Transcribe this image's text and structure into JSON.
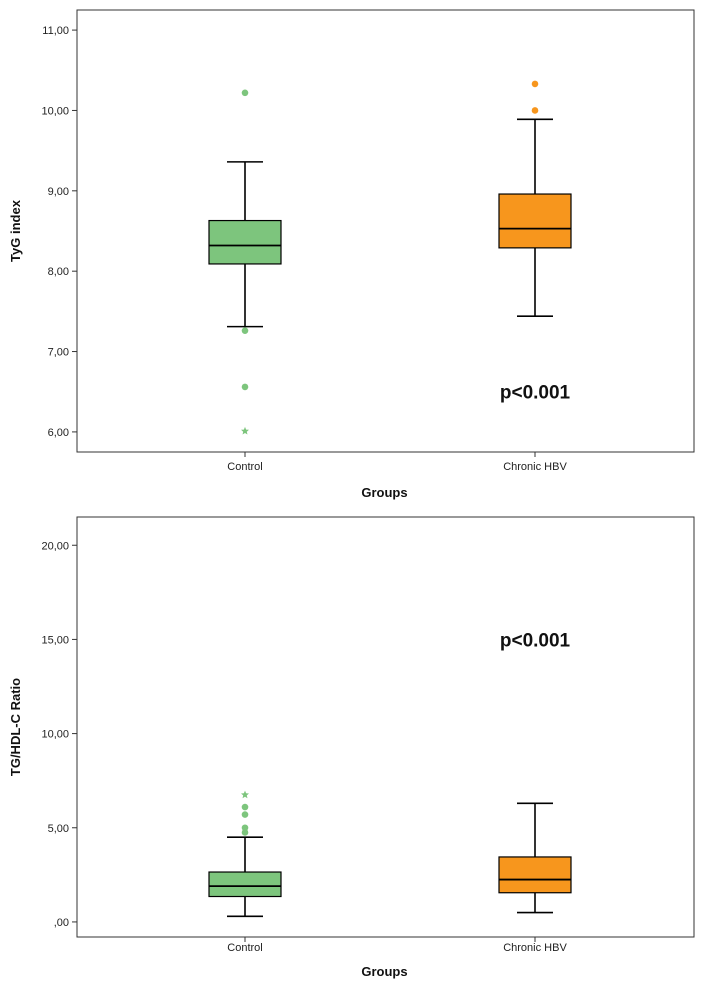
{
  "colors": {
    "control": "#7dc57d",
    "hbv": "#f7961d",
    "frame": "#333333",
    "line": "#000000"
  },
  "chart_data": [
    {
      "type": "boxplot",
      "title": "",
      "xlabel": "Groups",
      "ylabel": "TyG index",
      "ylim": [
        5.75,
        11.25
      ],
      "yticks": [
        6,
        7,
        8,
        9,
        10,
        11
      ],
      "ytick_labels": [
        "6,00",
        "7,00",
        "8,00",
        "9,00",
        "10,00",
        "11,00"
      ],
      "annotation": "p<0.001",
      "annotation_pos": {
        "category_index": 1,
        "y": 6.5
      },
      "categories": [
        "Control",
        "Chronic HBV"
      ],
      "boxes": [
        {
          "whisker_low": 7.31,
          "q1": 8.09,
          "median": 8.32,
          "q3": 8.63,
          "whisker_high": 9.36,
          "outliers": [
            10.22,
            7.26,
            6.56
          ],
          "extremes": [
            6.01
          ]
        },
        {
          "whisker_low": 7.44,
          "q1": 8.29,
          "median": 8.53,
          "q3": 8.96,
          "whisker_high": 9.89,
          "outliers": [
            10.33,
            10.0
          ],
          "extremes": []
        }
      ]
    },
    {
      "type": "boxplot",
      "title": "",
      "xlabel": "Groups",
      "ylabel": "TG/HDL-C Ratio",
      "ylim": [
        -0.8,
        21.5
      ],
      "yticks": [
        0,
        5,
        10,
        15,
        20
      ],
      "ytick_labels": [
        ",00",
        "5,00",
        "10,00",
        "15,00",
        "20,00"
      ],
      "annotation": "p<0.001",
      "annotation_pos": {
        "category_index": 1,
        "y": 15.0
      },
      "categories": [
        "Control",
        "Chronic HBV"
      ],
      "boxes": [
        {
          "whisker_low": 0.3,
          "q1": 1.35,
          "median": 1.9,
          "q3": 2.65,
          "whisker_high": 4.5,
          "outliers": [
            4.75,
            5.0,
            5.7,
            6.1
          ],
          "extremes": [
            6.75
          ]
        },
        {
          "whisker_low": 0.5,
          "q1": 1.55,
          "median": 2.25,
          "q3": 3.45,
          "whisker_high": 6.3,
          "outliers": [],
          "extremes": []
        }
      ]
    }
  ]
}
